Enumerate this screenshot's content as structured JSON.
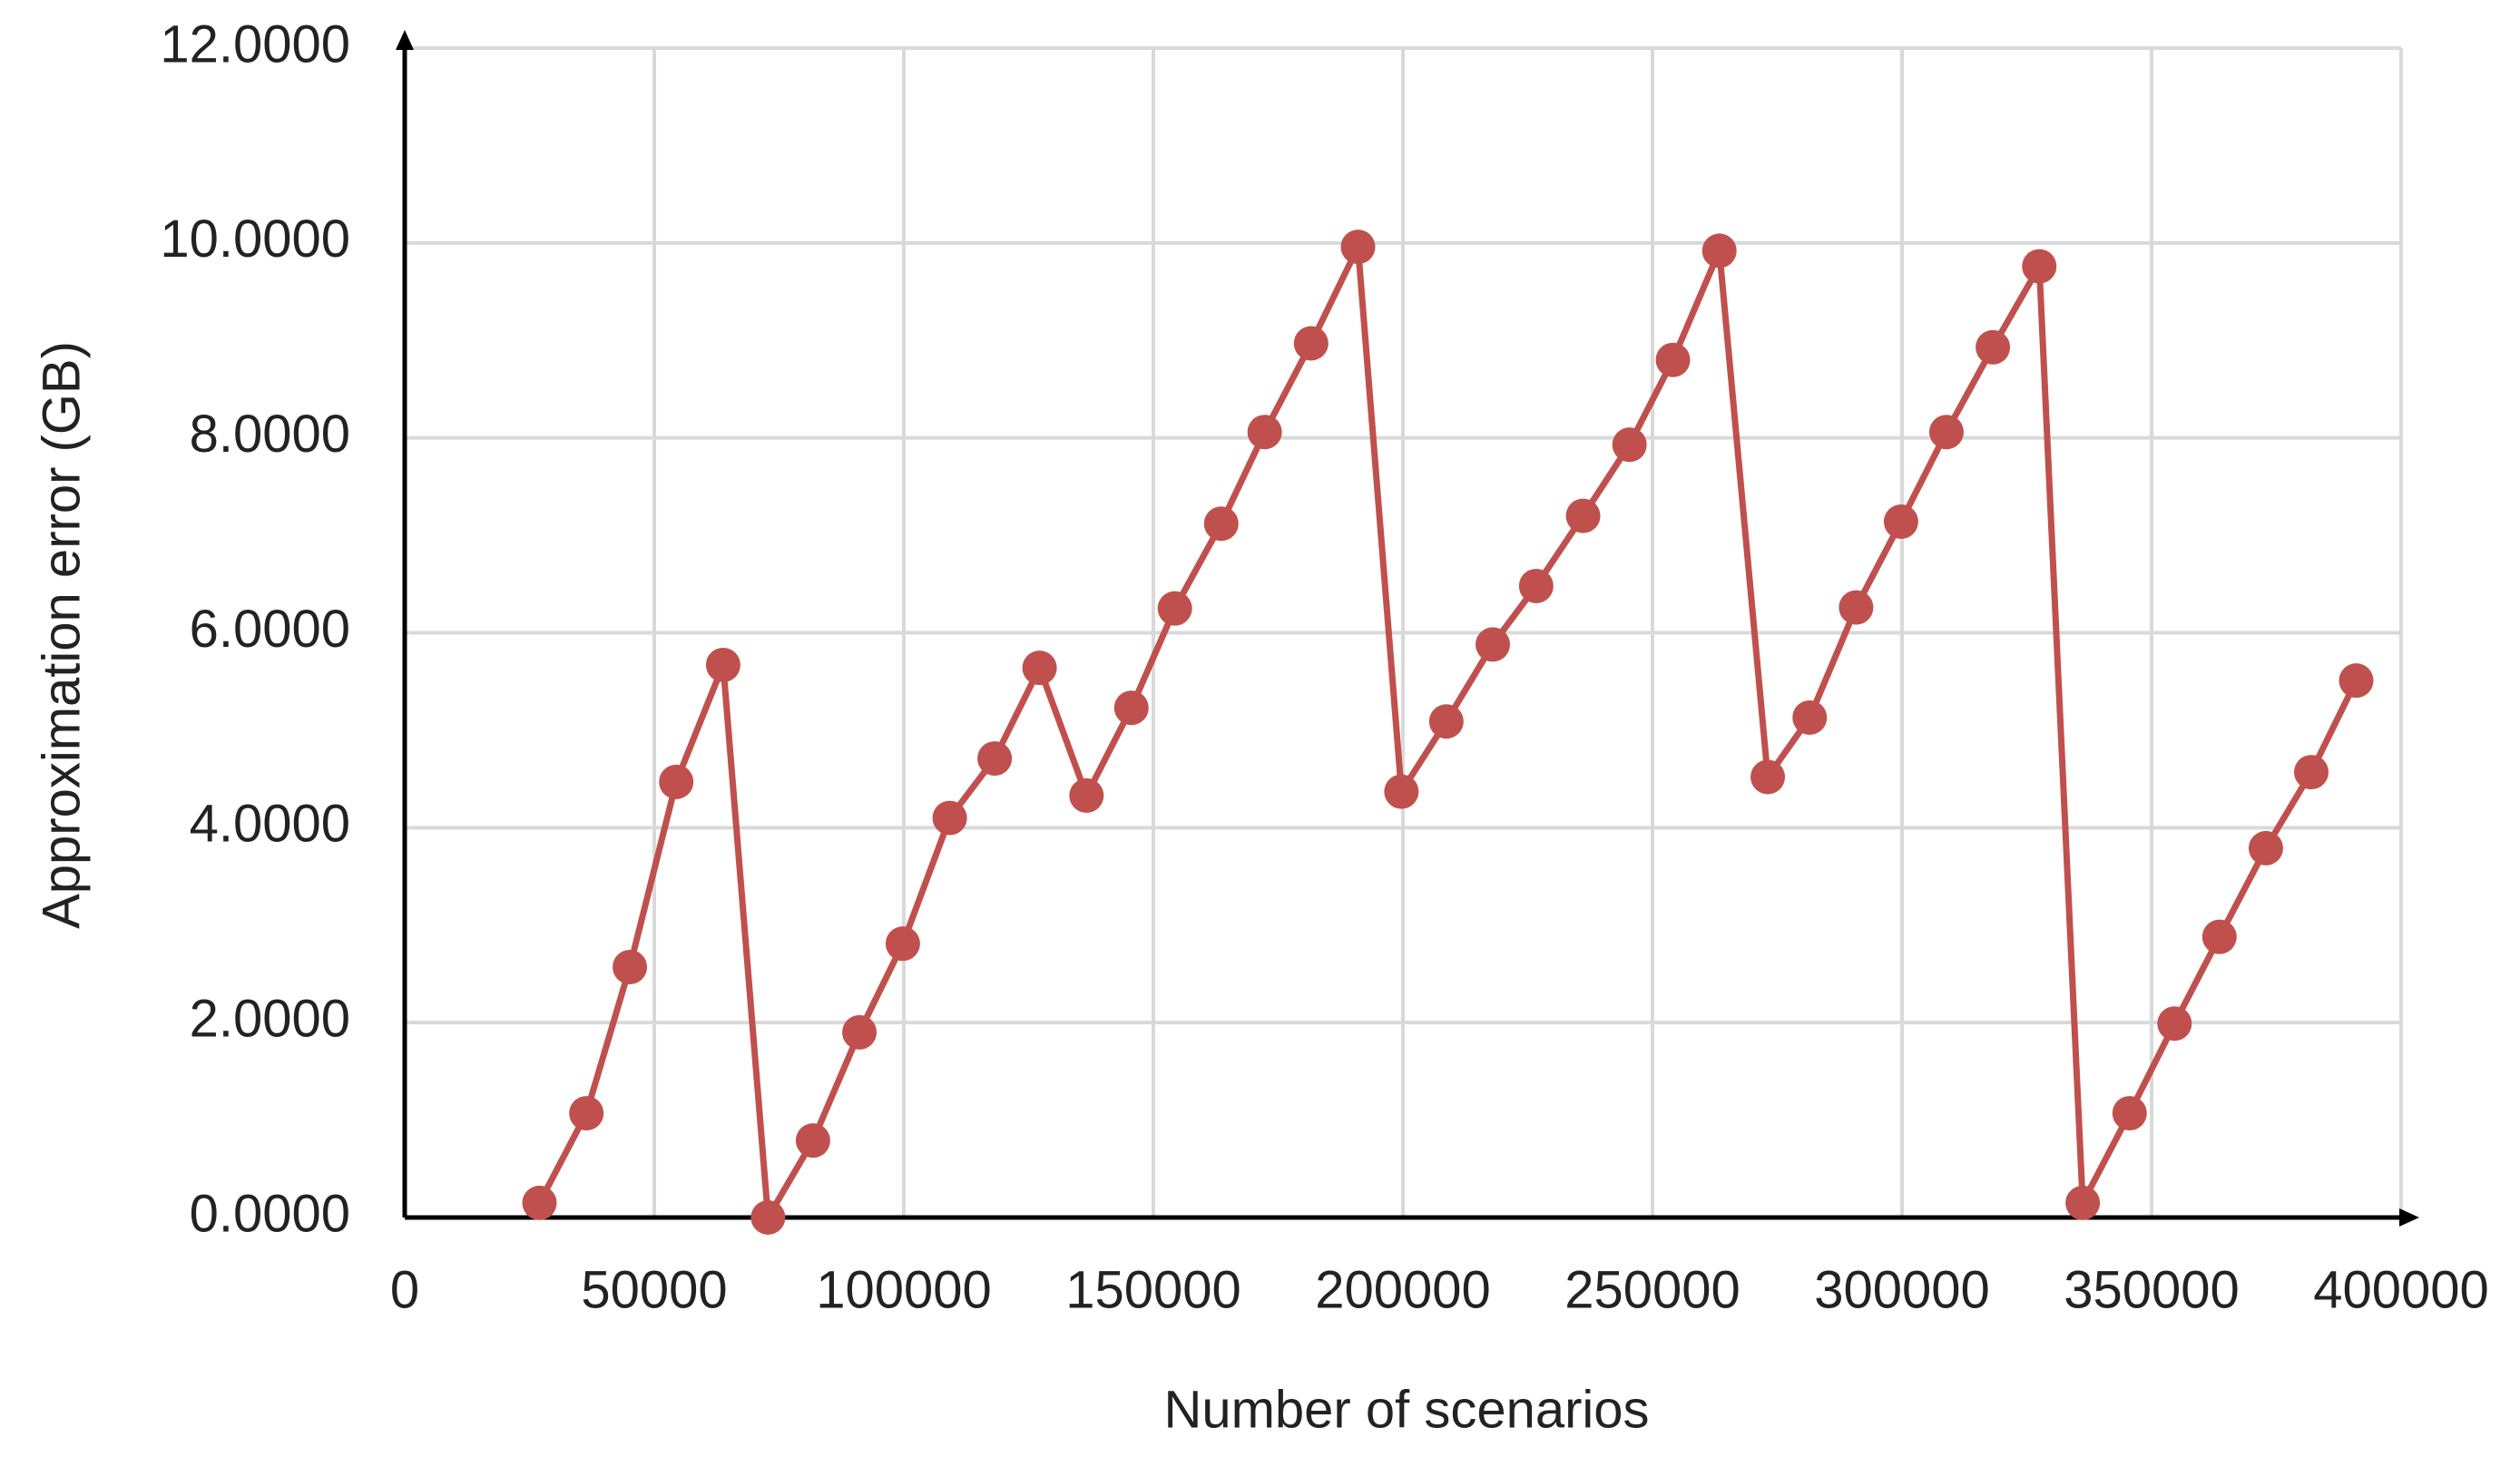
{
  "chart_data": {
    "type": "line",
    "x_label": "Number  of scenarios",
    "y_label": "Approximation error (GB)",
    "xlim": [
      0,
      400000
    ],
    "xticks": [
      0,
      50000,
      100000,
      150000,
      200000,
      250000,
      300000,
      350000,
      400000
    ],
    "ylim": [
      0,
      12
    ],
    "yticks": [
      {
        "value": 0,
        "label": "0.0000"
      },
      {
        "value": 2,
        "label": "2.0000"
      },
      {
        "value": 4,
        "label": "4.0000"
      },
      {
        "value": 6,
        "label": "6.0000"
      },
      {
        "value": 8,
        "label": "8.0000"
      },
      {
        "value": 10,
        "label": "10.0000"
      },
      {
        "value": 12,
        "label": "12.0000"
      }
    ],
    "grid": true,
    "color": "#c0504d",
    "x": [
      27000,
      36400,
      45100,
      54400,
      63800,
      72800,
      81800,
      91100,
      99800,
      109200,
      118200,
      127200,
      136600,
      145600,
      154300,
      163600,
      172300,
      181600,
      191000,
      199700,
      208700,
      218000,
      226700,
      236100,
      245400,
      254100,
      263400,
      273100,
      281500,
      290800,
      299800,
      308900,
      318200,
      327500,
      336200,
      345600,
      354600,
      363600,
      372900,
      382000,
      391000
    ],
    "values": [
      0.15,
      1.07,
      2.57,
      4.47,
      5.67,
      0.0,
      0.79,
      1.9,
      2.81,
      4.1,
      4.71,
      5.64,
      4.33,
      5.23,
      6.25,
      7.12,
      8.06,
      8.97,
      9.96,
      4.37,
      5.09,
      5.88,
      6.48,
      7.2,
      7.93,
      8.8,
      9.92,
      4.52,
      5.13,
      6.26,
      7.14,
      8.06,
      8.93,
      9.76,
      0.15,
      1.07,
      1.99,
      2.88,
      3.79,
      4.57,
      5.51
    ]
  }
}
